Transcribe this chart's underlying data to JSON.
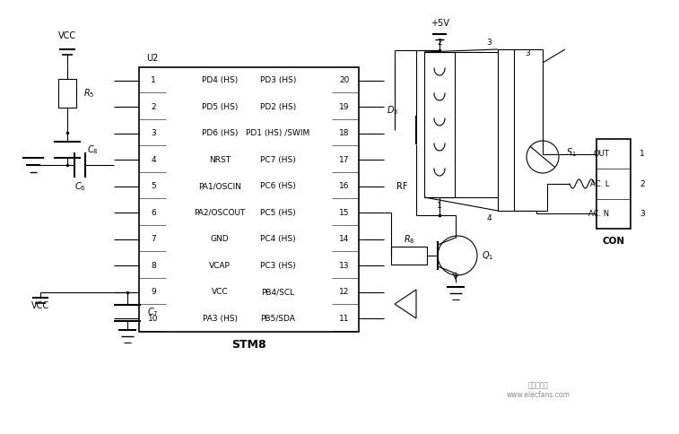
{
  "bg_color": "#ffffff",
  "line_color": "#000000",
  "text_color": "#000000",
  "fig_width": 7.57,
  "fig_height": 4.84,
  "dpi": 100,
  "left_pins": [
    "PD4 (HS)",
    "PD5 (HS)",
    "PD6 (HS)",
    "NRST",
    "PA1/OSCIN",
    "PA2/OSCOUT",
    "GND",
    "VCAP",
    "VCC",
    "PA3 (HS)"
  ],
  "right_pins": [
    "PD3 (HS)",
    "PD2 (HS)",
    "PD1 (HS) /SWIM",
    "PC7 (HS)",
    "PC6 (HS)",
    "PC5 (HS)",
    "PC4 (HS)",
    "PC3 (HS)",
    "PB4/SCL",
    "PB5/SDA"
  ],
  "left_pin_nums": [
    "1",
    "2",
    "3",
    "4",
    "5",
    "6",
    "7",
    "8",
    "9",
    "10"
  ],
  "right_pin_nums": [
    "20",
    "19",
    "18",
    "17",
    "16",
    "15",
    "14",
    "13",
    "12",
    "11"
  ]
}
